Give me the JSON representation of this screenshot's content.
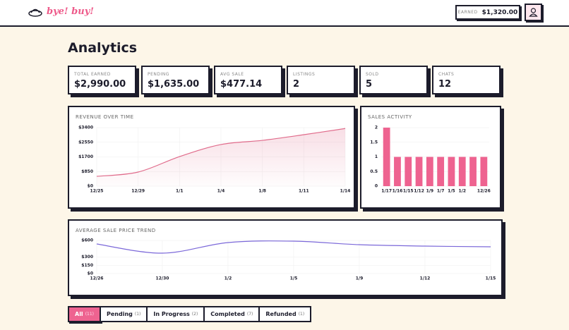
{
  "header": {
    "logo": "bye! buy!",
    "earned_label": "EARNED",
    "earned_value": "$1,320.00"
  },
  "page_title": "Analytics",
  "stats": [
    {
      "label": "TOTAL EARNED",
      "value": "$2,990.00"
    },
    {
      "label": "PENDING",
      "value": "$1,635.00"
    },
    {
      "label": "AVG SALE",
      "value": "$477.14"
    },
    {
      "label": "LISTINGS",
      "value": "2"
    },
    {
      "label": "SOLD",
      "value": "5"
    },
    {
      "label": "CHATS",
      "value": "12"
    }
  ],
  "chart_data": [
    {
      "type": "area",
      "title": "REVENUE OVER TIME",
      "categories": [
        "12/25",
        "12/29",
        "1/1",
        "1/4",
        "1/8",
        "1/11",
        "1/14"
      ],
      "values": [
        570,
        820,
        1720,
        2420,
        2660,
        2990,
        3350
      ],
      "color": "#e06b8b",
      "ylim": [
        0,
        3400
      ],
      "yticks": [
        {
          "value": 0,
          "label": "$0"
        },
        {
          "value": 850,
          "label": "$850"
        },
        {
          "value": 1700,
          "label": "$1700"
        },
        {
          "value": 2550,
          "label": "$2550"
        },
        {
          "value": 3400,
          "label": "$3400"
        }
      ],
      "grid": true
    },
    {
      "type": "bar",
      "title": "SALES ACTIVITY",
      "categories": [
        "1/17",
        "1/16",
        "1/15",
        "1/12",
        "1/9",
        "1/7",
        "1/5",
        "1/2",
        null,
        "12/26"
      ],
      "values": [
        2,
        1,
        1,
        1,
        1,
        1,
        1,
        1,
        1,
        1
      ],
      "color": "#ee6390",
      "ylim": [
        0,
        2
      ],
      "yticks": [
        0,
        0.5,
        1,
        1.5,
        2
      ],
      "grid": true
    },
    {
      "type": "line",
      "title": "AVERAGE SALE PRICE TREND",
      "categories": [
        "12/26",
        "12/30",
        "1/2",
        "1/5",
        "1/9",
        "1/12",
        "1/15"
      ],
      "values": [
        536,
        370,
        562,
        587,
        523,
        498,
        485
      ],
      "color": "#7b68d9",
      "ylim": [
        0,
        600
      ],
      "yticks": [
        {
          "value": 0,
          "label": "$0"
        },
        {
          "value": 150,
          "label": "$150"
        },
        {
          "value": 300,
          "label": "$300"
        },
        {
          "value": 600,
          "label": "$600"
        }
      ],
      "grid": true
    }
  ],
  "filters": [
    {
      "label": "All",
      "count": "(11)"
    },
    {
      "label": "Pending",
      "count": "(1)"
    },
    {
      "label": "In Progress",
      "count": "(2)"
    },
    {
      "label": "Completed",
      "count": "(7)"
    },
    {
      "label": "Refunded",
      "count": "(1)"
    }
  ]
}
